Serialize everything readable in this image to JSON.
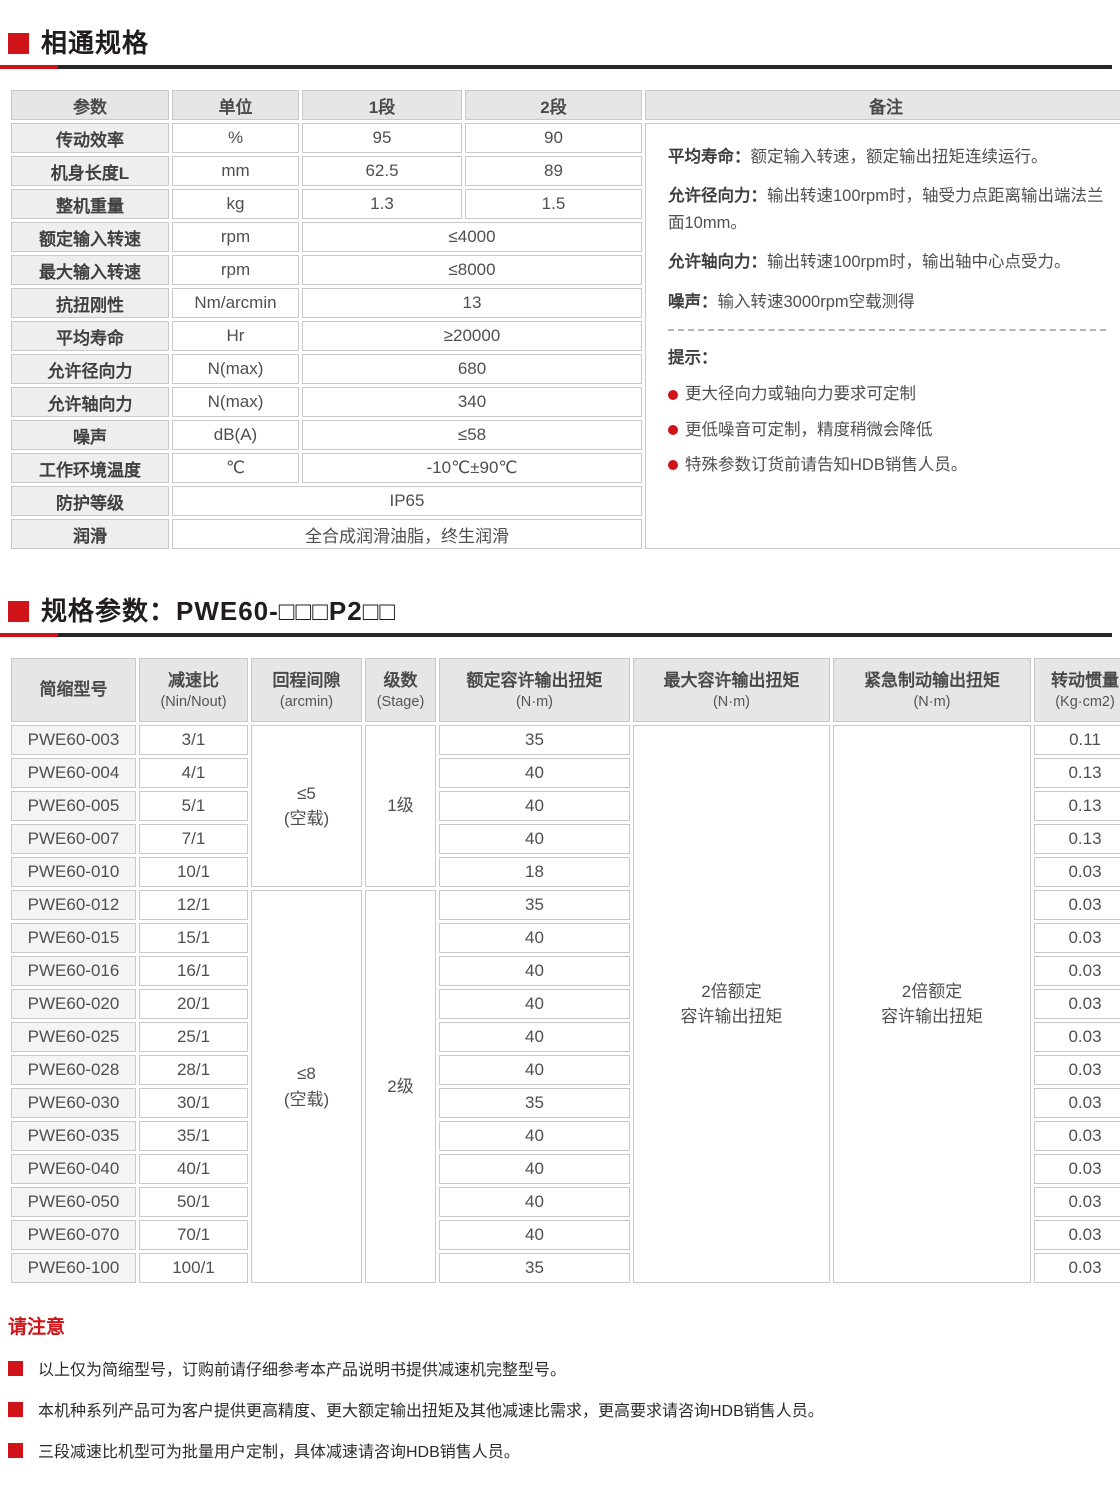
{
  "colors": {
    "accent_red": "#cf1318",
    "rule_dark": "#2b2626"
  },
  "section_common": {
    "title": "相通规格",
    "table": {
      "headers": [
        "参数",
        "单位",
        "1段",
        "2段",
        "备注"
      ],
      "rows": [
        {
          "label": "传动效率",
          "unit": "%",
          "v1": "95",
          "v2": "90"
        },
        {
          "label": "机身长度L",
          "unit": "mm",
          "v1": "62.5",
          "v2": "89"
        },
        {
          "label": "整机重量",
          "unit": "kg",
          "v1": "1.3",
          "v2": "1.5"
        },
        {
          "label": "额定输入转速",
          "unit": "rpm",
          "span": "≤4000"
        },
        {
          "label": "最大输入转速",
          "unit": "rpm",
          "span": "≤8000"
        },
        {
          "label": "抗扭刚性",
          "unit": "Nm/arcmin",
          "span": "13"
        },
        {
          "label": "平均寿命",
          "unit": "Hr",
          "span": "≥20000"
        },
        {
          "label": "允许径向力",
          "unit": "N(max)",
          "span": "680"
        },
        {
          "label": "允许轴向力",
          "unit": "N(max)",
          "span": "340"
        },
        {
          "label": "噪声",
          "unit": "dB(A)",
          "span": "≤58"
        },
        {
          "label": "工作环境温度",
          "unit": "℃",
          "span": "-10℃±90℃"
        },
        {
          "label": "防护等级",
          "full": "IP65"
        },
        {
          "label": "润滑",
          "full": "全合成润滑油脂，终生润滑"
        }
      ]
    },
    "notes": {
      "paragraphs": [
        {
          "label": "平均寿命：",
          "text": "额定输入转速，额定输出扭矩连续运行。"
        },
        {
          "label": "允许径向力：",
          "text": "输出转速100rpm时，轴受力点距离输出端法兰面10mm。"
        },
        {
          "label": "允许轴向力：",
          "text": "输出转速100rpm时，输出轴中心点受力。"
        },
        {
          "label": "噪声：",
          "text": "输入转速3000rpm空载测得"
        }
      ],
      "tips_title": "提示：",
      "tips": [
        "更大径向力或轴向力要求可定制",
        "更低噪音可定制，精度稍微会降低",
        "特殊参数订货前请告知HDB销售人员。"
      ]
    }
  },
  "section_models": {
    "title": "规格参数：PWE60-□□□P2□□",
    "table": {
      "headers": [
        {
          "main": "简缩型号",
          "sub": ""
        },
        {
          "main": "减速比",
          "sub": "(Nin/Nout)"
        },
        {
          "main": "回程间隙",
          "sub": "(arcmin)"
        },
        {
          "main": "级数",
          "sub": "(Stage)"
        },
        {
          "main": "额定容许输出扭矩",
          "sub": "(N·m)"
        },
        {
          "main": "最大容许输出扭矩",
          "sub": "(N·m)"
        },
        {
          "main": "紧急制动输出扭矩",
          "sub": "(N·m)"
        },
        {
          "main": "转动惯量",
          "sub": "(Kg·cm2)"
        }
      ],
      "groups": [
        {
          "rows": 5,
          "backlash": "≤5",
          "backlash_note": "(空载)",
          "stage": "1级"
        },
        {
          "rows": 12,
          "backlash": "≤8",
          "backlash_note": "(空载)",
          "stage": "2级"
        }
      ],
      "max_torque_lines": [
        "2倍额定",
        "容许输出扭矩"
      ],
      "brake_torque_lines": [
        "2倍额定",
        "容许输出扭矩"
      ],
      "rows": [
        {
          "model": "PWE60-003",
          "ratio": "3/1",
          "rated_torque": "35",
          "inertia": "0.11"
        },
        {
          "model": "PWE60-004",
          "ratio": "4/1",
          "rated_torque": "40",
          "inertia": "0.13"
        },
        {
          "model": "PWE60-005",
          "ratio": "5/1",
          "rated_torque": "40",
          "inertia": "0.13"
        },
        {
          "model": "PWE60-007",
          "ratio": "7/1",
          "rated_torque": "40",
          "inertia": "0.13"
        },
        {
          "model": "PWE60-010",
          "ratio": "10/1",
          "rated_torque": "18",
          "inertia": "0.03"
        },
        {
          "model": "PWE60-012",
          "ratio": "12/1",
          "rated_torque": "35",
          "inertia": "0.03"
        },
        {
          "model": "PWE60-015",
          "ratio": "15/1",
          "rated_torque": "40",
          "inertia": "0.03"
        },
        {
          "model": "PWE60-016",
          "ratio": "16/1",
          "rated_torque": "40",
          "inertia": "0.03"
        },
        {
          "model": "PWE60-020",
          "ratio": "20/1",
          "rated_torque": "40",
          "inertia": "0.03"
        },
        {
          "model": "PWE60-025",
          "ratio": "25/1",
          "rated_torque": "40",
          "inertia": "0.03"
        },
        {
          "model": "PWE60-028",
          "ratio": "28/1",
          "rated_torque": "40",
          "inertia": "0.03"
        },
        {
          "model": "PWE60-030",
          "ratio": "30/1",
          "rated_torque": "35",
          "inertia": "0.03"
        },
        {
          "model": "PWE60-035",
          "ratio": "35/1",
          "rated_torque": "40",
          "inertia": "0.03"
        },
        {
          "model": "PWE60-040",
          "ratio": "40/1",
          "rated_torque": "40",
          "inertia": "0.03"
        },
        {
          "model": "PWE60-050",
          "ratio": "50/1",
          "rated_torque": "40",
          "inertia": "0.03"
        },
        {
          "model": "PWE60-070",
          "ratio": "70/1",
          "rated_torque": "40",
          "inertia": "0.03"
        },
        {
          "model": "PWE60-100",
          "ratio": "100/1",
          "rated_torque": "35",
          "inertia": "0.03"
        }
      ]
    }
  },
  "footer": {
    "title": "请注意",
    "items": [
      "以上仅为简缩型号，订购前请仔细参考本产品说明书提供减速机完整型号。",
      "本机种系列产品可为客户提供更高精度、更大额定输出扭矩及其他减速比需求，更高要求请咨询HDB销售人员。",
      "三段减速比机型可为批量用户定制，具体减速请咨询HDB销售人员。"
    ]
  }
}
